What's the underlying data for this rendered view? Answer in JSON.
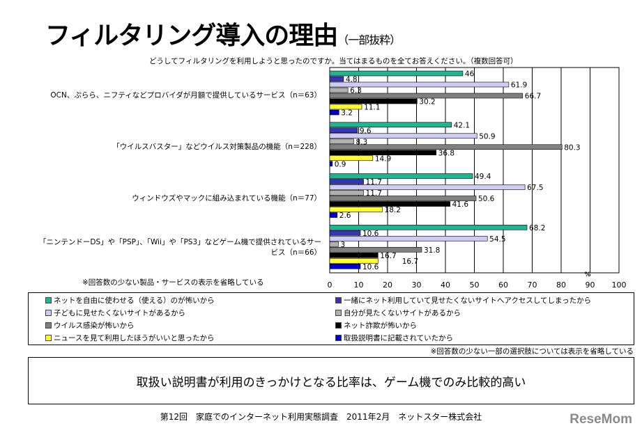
{
  "title": "フィルタリング導入の理由",
  "title_suffix": "（一部抜粋）",
  "question": "どうしてフィルタリングを利用しようと思ったのですか。当てはまるものを全てお答えください。（複数回答可）",
  "note_products": "※回答数の少ない製品・サービスの表示を省略している",
  "note_options": "※回答数の少ない一部の選択肢については表示を省略している",
  "message": "取扱い説明書が利用のきっかけとなる比率は、ゲーム機でのみ比較的高い",
  "footer": "第12回　家庭でのインターネット利用実態調査　2011年2月　ネットスター株式会社",
  "logo": "ReseMom",
  "chart_data": {
    "type": "bar",
    "orientation": "horizontal",
    "unit": "%",
    "xlim": [
      0,
      100
    ],
    "ticks": [
      "0",
      "10",
      "20",
      "30",
      "40",
      "50",
      "60",
      "70",
      "80",
      "90",
      "100"
    ],
    "grid": true,
    "legend_position": "bottom",
    "categories": [
      "OCN、ぷらら、ニフティなどプロバイダが月額で提供しているサービス（n＝63）",
      "「ウイルスバスター」などウイルス対策製品の機能（n＝228）",
      "ウィンドウズやマックに組み込まれている機能（n＝77）",
      "「ニンテンドーDS」や「PSP」、「Wii」や「PS3」などゲーム機で提供されているサービス（n＝66）"
    ],
    "series": [
      {
        "name": "ネットを自由に使わせる（使える）のが怖いから",
        "color": "#20b590",
        "values": [
          46,
          42.1,
          49.4,
          68.2
        ]
      },
      {
        "name": "一緒にネット利用していて見せたくないサイトへアクセスしてしまったから",
        "color": "#3535b5",
        "values": [
          4.8,
          9.6,
          11.7,
          10.6
        ]
      },
      {
        "name": "子どもに見せたくないサイトがあるから",
        "color": "#ccccf5",
        "values": [
          61.9,
          50.9,
          67.5,
          54.5
        ]
      },
      {
        "name": "自分が見たくないサイトがあるから",
        "color": "#b0b0b0",
        "values": [
          6.3,
          8.3,
          11.7,
          3
        ]
      },
      {
        "name": "ウイルス感染が怖いから",
        "color": "#808080",
        "values": [
          66.7,
          80.3,
          50.6,
          31.8
        ]
      },
      {
        "name": "ネット詐欺が怖いから",
        "color": "#000000",
        "values": [
          30.2,
          36.8,
          41.6,
          16.7
        ]
      },
      {
        "name": "ニュースを見て利用したほうがいいと思ったから",
        "color": "#ffff33",
        "values": [
          11.1,
          14.9,
          18.2,
          16.7
        ]
      },
      {
        "name": "取扱説明書に記載されていたから",
        "color": "#0000cc",
        "values": [
          3.2,
          0.9,
          2.6,
          10.6
        ]
      }
    ]
  }
}
